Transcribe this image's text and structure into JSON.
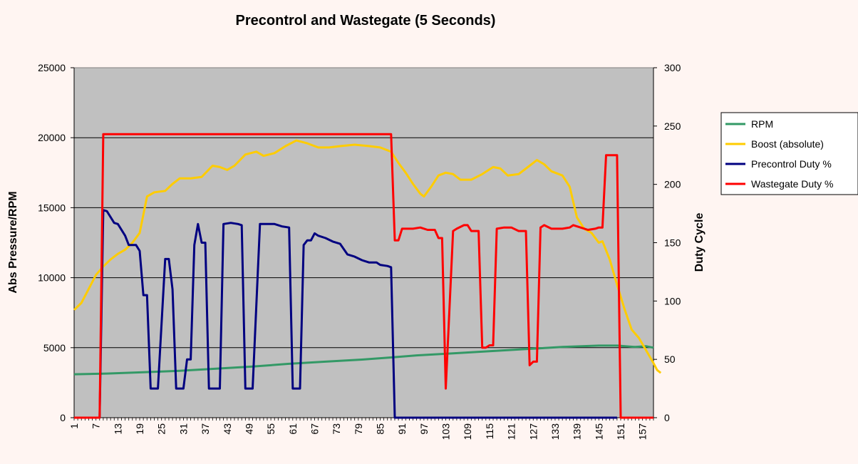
{
  "chart_data": {
    "type": "line",
    "title": "Precontrol and Wastegate  (5 Seconds)",
    "ylabel": "Abs Pressure/RPM",
    "y2label": "Duty Cycle",
    "ylim": [
      0,
      25000
    ],
    "y2lim": [
      0,
      300
    ],
    "yticks": [
      "0",
      "5000",
      "10000",
      "15000",
      "20000",
      "25000"
    ],
    "y2ticks": [
      "0",
      "50",
      "100",
      "150",
      "200",
      "250",
      "300"
    ],
    "xlim": [
      1,
      160
    ],
    "xticks": [
      "1",
      "7",
      "13",
      "19",
      "25",
      "31",
      "37",
      "43",
      "49",
      "55",
      "61",
      "67",
      "73",
      "79",
      "85",
      "91",
      "97",
      "103",
      "109",
      "115",
      "121",
      "127",
      "133",
      "139",
      "145",
      "151",
      "157"
    ],
    "grid": "horizontal major lines",
    "legend_position": "right",
    "plot_background": "#c0c0c0",
    "series": [
      {
        "name": "RPM",
        "axis": "left",
        "color": "#339966",
        "points": [
          [
            1,
            3100
          ],
          [
            10,
            3150
          ],
          [
            20,
            3250
          ],
          [
            30,
            3350
          ],
          [
            40,
            3500
          ],
          [
            50,
            3650
          ],
          [
            60,
            3850
          ],
          [
            70,
            4000
          ],
          [
            80,
            4150
          ],
          [
            88,
            4300
          ],
          [
            95,
            4450
          ],
          [
            105,
            4600
          ],
          [
            115,
            4750
          ],
          [
            125,
            4900
          ],
          [
            135,
            5050
          ],
          [
            145,
            5150
          ],
          [
            150,
            5150
          ],
          [
            155,
            5050
          ],
          [
            158,
            5100
          ],
          [
            160,
            5000
          ]
        ]
      },
      {
        "name": "Boost (absolute)",
        "axis": "left",
        "color": "#ffcc00",
        "points": [
          [
            1,
            7700
          ],
          [
            3,
            8200
          ],
          [
            5,
            9200
          ],
          [
            7,
            10200
          ],
          [
            9,
            10800
          ],
          [
            11,
            11300
          ],
          [
            13,
            11700
          ],
          [
            15,
            12000
          ],
          [
            17,
            12500
          ],
          [
            19,
            13200
          ],
          [
            21,
            15800
          ],
          [
            23,
            16100
          ],
          [
            26,
            16200
          ],
          [
            28,
            16700
          ],
          [
            30,
            17100
          ],
          [
            33,
            17100
          ],
          [
            36,
            17200
          ],
          [
            39,
            18000
          ],
          [
            41,
            17900
          ],
          [
            43,
            17700
          ],
          [
            45,
            18000
          ],
          [
            48,
            18800
          ],
          [
            51,
            19000
          ],
          [
            53,
            18700
          ],
          [
            56,
            18900
          ],
          [
            59,
            19400
          ],
          [
            62,
            19800
          ],
          [
            65,
            19600
          ],
          [
            68,
            19300
          ],
          [
            71,
            19300
          ],
          [
            74,
            19400
          ],
          [
            78,
            19500
          ],
          [
            82,
            19400
          ],
          [
            85,
            19300
          ],
          [
            88,
            19000
          ],
          [
            90,
            18200
          ],
          [
            92,
            17500
          ],
          [
            94,
            16700
          ],
          [
            96,
            16000
          ],
          [
            97,
            15800
          ],
          [
            99,
            16500
          ],
          [
            101,
            17300
          ],
          [
            103,
            17500
          ],
          [
            105,
            17400
          ],
          [
            107,
            17000
          ],
          [
            110,
            17000
          ],
          [
            113,
            17400
          ],
          [
            116,
            17900
          ],
          [
            118,
            17800
          ],
          [
            120,
            17300
          ],
          [
            123,
            17400
          ],
          [
            126,
            18000
          ],
          [
            128,
            18400
          ],
          [
            130,
            18100
          ],
          [
            132,
            17600
          ],
          [
            135,
            17300
          ],
          [
            137,
            16500
          ],
          [
            139,
            14300
          ],
          [
            141,
            13500
          ],
          [
            143,
            13200
          ],
          [
            145,
            12500
          ],
          [
            146,
            12600
          ],
          [
            148,
            11300
          ],
          [
            150,
            9500
          ],
          [
            152,
            7800
          ],
          [
            154,
            6300
          ],
          [
            156,
            5700
          ],
          [
            158,
            4800
          ],
          [
            160,
            3900
          ],
          [
            161,
            3400
          ],
          [
            162,
            3200
          ]
        ]
      },
      {
        "name": "Precontrol Duty %",
        "axis": "right",
        "color": "#000080",
        "points": [
          [
            1,
            0
          ],
          [
            8,
            0
          ],
          [
            9,
            178
          ],
          [
            10,
            177
          ],
          [
            12,
            167
          ],
          [
            13,
            166
          ],
          [
            15,
            156
          ],
          [
            16,
            148
          ],
          [
            18,
            148
          ],
          [
            19,
            143
          ],
          [
            20,
            105
          ],
          [
            21,
            105
          ],
          [
            22,
            25
          ],
          [
            24,
            25
          ],
          [
            26,
            136
          ],
          [
            27,
            136
          ],
          [
            28,
            110
          ],
          [
            29,
            25
          ],
          [
            31,
            25
          ],
          [
            32,
            50
          ],
          [
            33,
            50
          ],
          [
            34,
            148
          ],
          [
            35,
            166
          ],
          [
            36,
            150
          ],
          [
            37,
            150
          ],
          [
            38,
            25
          ],
          [
            41,
            25
          ],
          [
            42,
            166
          ],
          [
            44,
            167
          ],
          [
            46,
            166
          ],
          [
            47,
            165
          ],
          [
            48,
            25
          ],
          [
            50,
            25
          ],
          [
            52,
            166
          ],
          [
            56,
            166
          ],
          [
            58,
            164
          ],
          [
            60,
            163
          ],
          [
            61,
            25
          ],
          [
            63,
            25
          ],
          [
            64,
            148
          ],
          [
            65,
            152
          ],
          [
            66,
            152
          ],
          [
            67,
            158
          ],
          [
            68,
            156
          ],
          [
            70,
            154
          ],
          [
            72,
            151
          ],
          [
            74,
            149
          ],
          [
            76,
            140
          ],
          [
            78,
            138
          ],
          [
            80,
            135
          ],
          [
            82,
            133
          ],
          [
            84,
            133
          ],
          [
            85,
            131
          ],
          [
            87,
            130
          ],
          [
            88,
            129
          ],
          [
            89,
            0
          ],
          [
            150,
            0
          ]
        ]
      },
      {
        "name": "Wastegate Duty %",
        "axis": "right",
        "color": "#ff0000",
        "points": [
          [
            1,
            0
          ],
          [
            8,
            0
          ],
          [
            9,
            243
          ],
          [
            88,
            243
          ],
          [
            89,
            152
          ],
          [
            90,
            152
          ],
          [
            91,
            162
          ],
          [
            94,
            162
          ],
          [
            96,
            163
          ],
          [
            98,
            161
          ],
          [
            100,
            161
          ],
          [
            101,
            154
          ],
          [
            102,
            154
          ],
          [
            103,
            25
          ],
          [
            105,
            160
          ],
          [
            106,
            162
          ],
          [
            108,
            165
          ],
          [
            109,
            165
          ],
          [
            110,
            160
          ],
          [
            112,
            160
          ],
          [
            113,
            60
          ],
          [
            114,
            60
          ],
          [
            115,
            62
          ],
          [
            116,
            62
          ],
          [
            117,
            162
          ],
          [
            119,
            163
          ],
          [
            121,
            163
          ],
          [
            123,
            160
          ],
          [
            125,
            160
          ],
          [
            126,
            45
          ],
          [
            127,
            48
          ],
          [
            128,
            48
          ],
          [
            129,
            163
          ],
          [
            130,
            165
          ],
          [
            132,
            162
          ],
          [
            135,
            162
          ],
          [
            137,
            163
          ],
          [
            138,
            165
          ],
          [
            140,
            163
          ],
          [
            142,
            161
          ],
          [
            144,
            162
          ],
          [
            145,
            163
          ],
          [
            146,
            163
          ],
          [
            147,
            225
          ],
          [
            150,
            225
          ],
          [
            151,
            0
          ],
          [
            160,
            0
          ]
        ]
      }
    ]
  }
}
